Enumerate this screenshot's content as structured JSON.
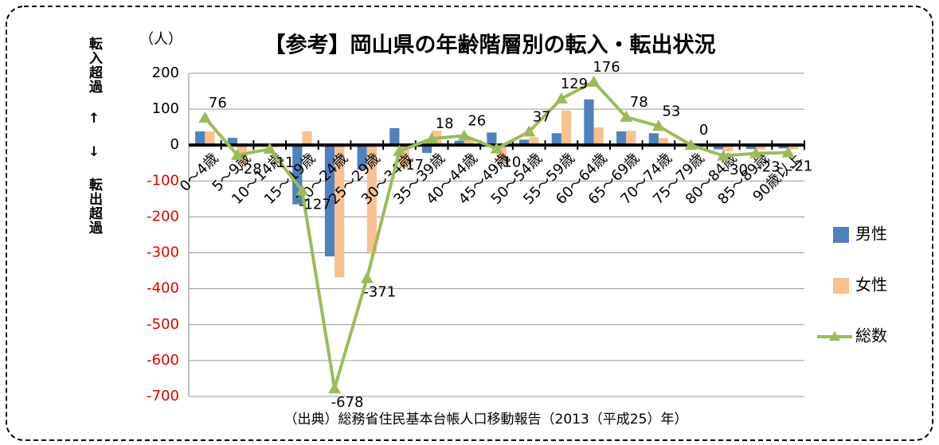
{
  "chart_data": {
    "type": "bar",
    "title": "【参考】岡山県の年齢階層別の転入・転出状況",
    "unit_label": "（人）",
    "y_axis_label": "転入超過 ↑ ↓ 転出超過",
    "source": "（出典）総務省住民基本台帳人口移動報告（2013（平成25）年）",
    "categories": [
      "0～4歳",
      "5～9歳",
      "10～14歳",
      "15～19歳",
      "20～24歳",
      "25～29歳",
      "30～34歳",
      "35～39歳",
      "40～44歳",
      "45～49歳",
      "50～54歳",
      "55～59歳",
      "60～64歳",
      "65～69歳",
      "70～74歳",
      "75～79歳",
      "80～84歳",
      "85～89歳",
      "90歳以上"
    ],
    "series": [
      {
        "name": "男性",
        "type": "bar",
        "color": "#4f81bd",
        "values": [
          38,
          20,
          -5,
          -165,
          -310,
          -68,
          47,
          -22,
          12,
          35,
          15,
          33,
          127,
          38,
          33,
          0,
          -12,
          -11,
          -9
        ]
      },
      {
        "name": "女性",
        "type": "bar",
        "color": "#fac090",
        "values": [
          38,
          -48,
          -6,
          38,
          -368,
          -303,
          -64,
          40,
          14,
          -45,
          22,
          96,
          49,
          40,
          20,
          0,
          -18,
          -12,
          -12
        ]
      },
      {
        "name": "総数",
        "type": "line",
        "color": "#9bbb59",
        "values": [
          76,
          -28,
          -11,
          -127,
          -678,
          -371,
          -17,
          18,
          26,
          -10,
          37,
          129,
          176,
          78,
          53,
          0,
          -30,
          -23,
          -21
        ]
      }
    ],
    "ylim": [
      -700,
      200
    ],
    "yticks": [
      -700,
      -600,
      -500,
      -400,
      -300,
      -200,
      -100,
      0,
      100,
      200
    ],
    "grid": true,
    "legend": "right"
  }
}
